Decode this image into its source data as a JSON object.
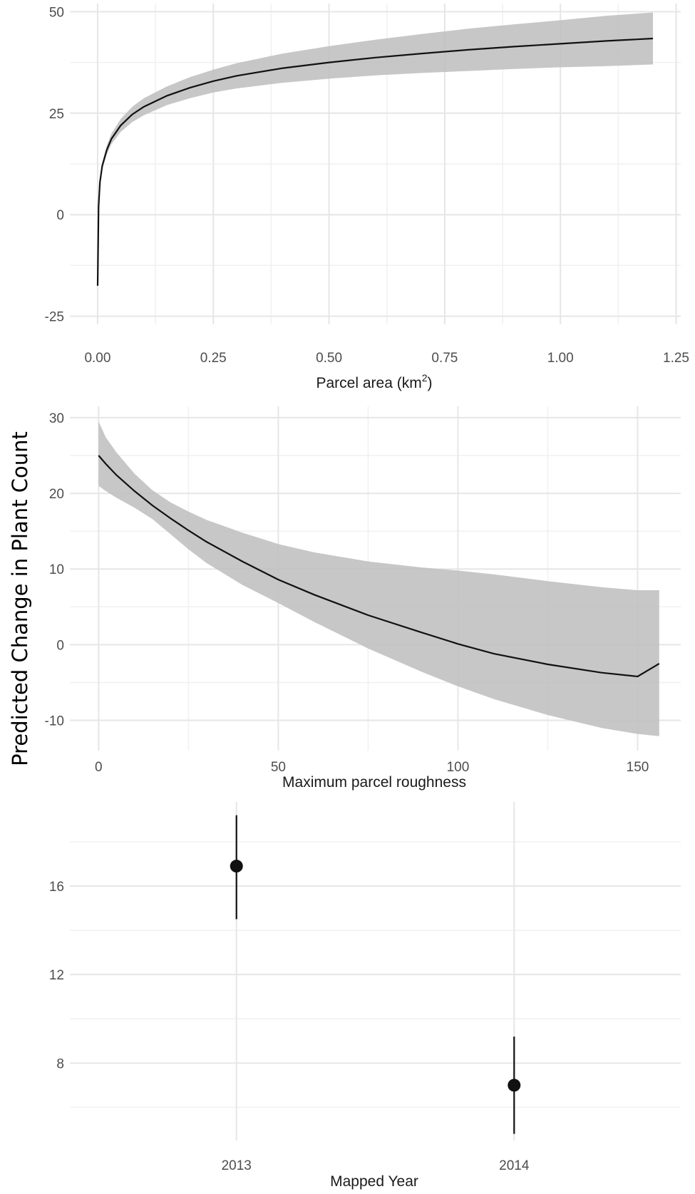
{
  "y_axis_title": "Predicted Change in Plant Count",
  "chart_data": [
    {
      "type": "line",
      "xlabel": "Parcel area (km",
      "xlabel_sup": "2",
      "xlabel_end": ")",
      "xlim": [
        -0.06,
        1.26
      ],
      "ylim": [
        -27,
        52
      ],
      "x_ticks": [
        0,
        0.25,
        0.5,
        0.75,
        1,
        1.25
      ],
      "x_tick_labels": [
        "0.00",
        "0.25",
        "0.50",
        "0.75",
        "1.00",
        "1.25"
      ],
      "y_ticks": [
        -25,
        0,
        25,
        50
      ],
      "y_tick_labels": [
        "-25",
        "0",
        "25",
        "50"
      ],
      "grid": true,
      "series": [
        {
          "x": [
            0.0,
            0.002,
            0.005,
            0.01,
            0.02,
            0.03,
            0.05,
            0.075,
            0.1,
            0.15,
            0.2,
            0.25,
            0.3,
            0.4,
            0.5,
            0.6,
            0.7,
            0.8,
            0.9,
            1.0,
            1.1,
            1.2
          ],
          "y": [
            -17.5,
            2.0,
            8.0,
            12.0,
            16.0,
            18.7,
            22.0,
            24.7,
            26.6,
            29.3,
            31.3,
            32.9,
            34.2,
            36.1,
            37.5,
            38.7,
            39.7,
            40.6,
            41.4,
            42.1,
            42.8,
            43.4
          ],
          "lower": [
            -17.5,
            1.6,
            7.4,
            11.2,
            14.9,
            17.4,
            20.4,
            22.8,
            24.5,
            27.0,
            28.7,
            30.1,
            31.1,
            32.5,
            33.5,
            34.3,
            34.9,
            35.4,
            35.9,
            36.3,
            36.6,
            37.0
          ],
          "upper": [
            -17.5,
            2.4,
            8.6,
            12.8,
            17.1,
            20.0,
            23.6,
            26.6,
            28.7,
            31.6,
            33.9,
            35.7,
            37.3,
            39.7,
            41.5,
            43.1,
            44.5,
            45.8,
            46.9,
            47.9,
            49.0,
            49.8
          ]
        }
      ]
    },
    {
      "type": "line",
      "xlabel": "Maximum parcel roughness",
      "xlim": [
        -8,
        162
      ],
      "ylim": [
        -14,
        31.5
      ],
      "x_ticks": [
        0,
        50,
        100,
        150
      ],
      "x_tick_labels": [
        "0",
        "50",
        "100",
        "150"
      ],
      "y_ticks": [
        -10,
        0,
        10,
        20,
        30
      ],
      "y_tick_labels": [
        "-10",
        "0",
        "10",
        "20",
        "30"
      ],
      "grid": true,
      "series": [
        {
          "x": [
            0,
            2,
            5,
            10,
            15,
            20,
            25,
            30,
            40,
            50,
            60,
            75,
            90,
            100,
            110,
            125,
            140,
            150,
            156
          ],
          "y": [
            25.0,
            23.9,
            22.4,
            20.3,
            18.4,
            16.7,
            15.1,
            13.6,
            11.0,
            8.6,
            6.6,
            3.9,
            1.6,
            0.1,
            -1.2,
            -2.6,
            -3.7,
            -4.2,
            -2.5
          ],
          "lower": [
            21.0,
            20.3,
            19.4,
            18.1,
            16.6,
            14.6,
            12.6,
            10.8,
            7.9,
            5.5,
            3.0,
            -0.5,
            -3.6,
            -5.5,
            -7.2,
            -9.3,
            -11.0,
            -11.8,
            -12.1
          ],
          "upper": [
            29.5,
            27.4,
            25.4,
            22.6,
            20.4,
            18.8,
            17.6,
            16.5,
            14.8,
            13.3,
            12.2,
            11.0,
            10.2,
            9.8,
            9.3,
            8.4,
            7.6,
            7.2,
            7.2
          ]
        }
      ]
    },
    {
      "type": "scatter",
      "xlabel": "Mapped Year",
      "categories": [
        "2013",
        "2014"
      ],
      "ylim": [
        4.5,
        19.8
      ],
      "y_ticks": [
        8,
        12,
        16
      ],
      "y_tick_labels": [
        "8",
        "12",
        "16"
      ],
      "grid": true,
      "series": [
        {
          "values": [
            16.9,
            7.0
          ],
          "lower": [
            14.5,
            4.8
          ],
          "upper": [
            19.2,
            9.2
          ]
        }
      ]
    }
  ]
}
